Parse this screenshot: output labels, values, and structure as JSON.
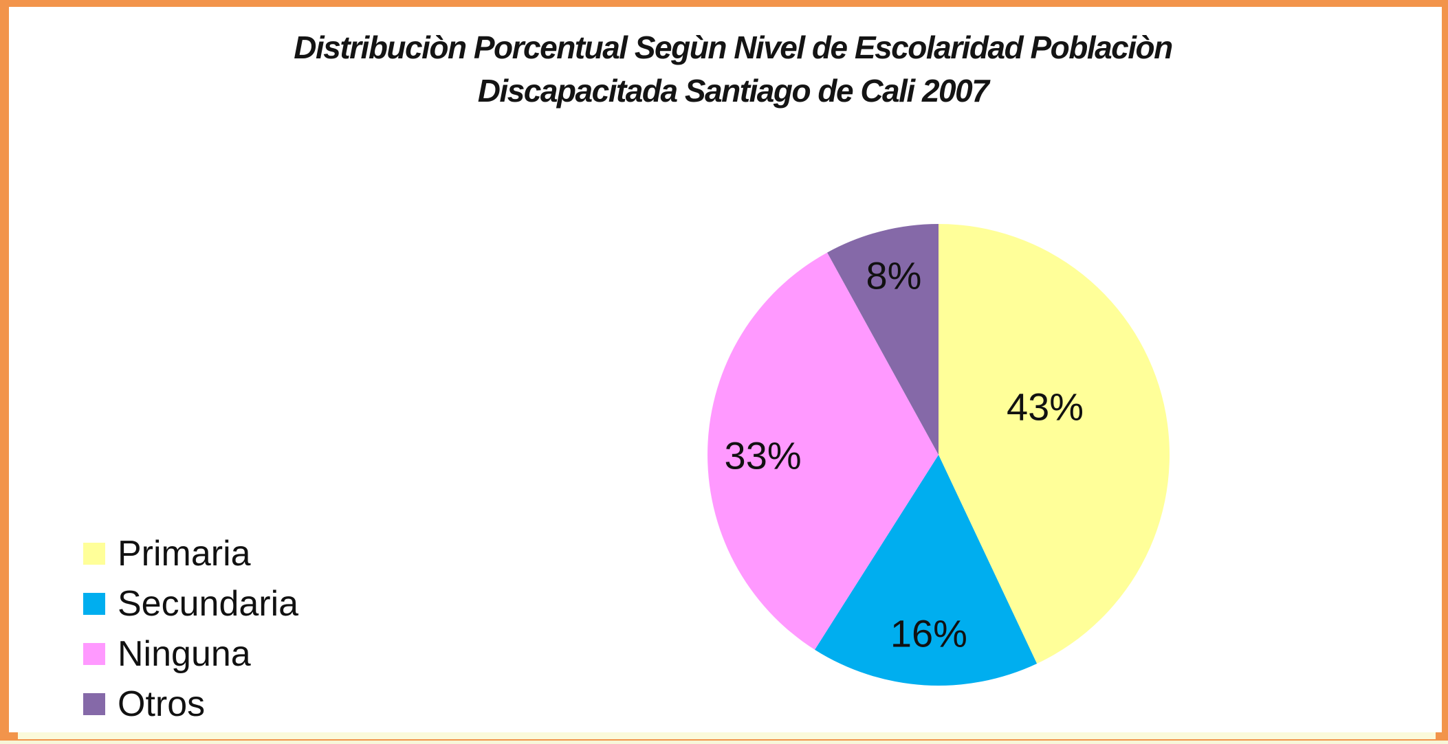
{
  "frame": {
    "border_color": "#F2944B",
    "background_color": "#FFFFFF"
  },
  "title": {
    "line1": "Distribuciòn Porcentual Segùn Nivel de Escolaridad Poblaciòn",
    "line2": "Discapacitada Santiago de Cali 2007",
    "color": "#141414"
  },
  "chart_data": {
    "type": "pie",
    "title": "Distribuciòn Porcentual Segùn Nivel de Escolaridad Poblaciòn Discapacitada Santiago de Cali 2007",
    "slices": [
      {
        "label": "Primaria",
        "value": 43,
        "display": "43%",
        "color": "#FFFF99"
      },
      {
        "label": "Secundaria",
        "value": 16,
        "display": "16%",
        "color": "#00AEEF"
      },
      {
        "label": "Ninguna",
        "value": 33,
        "display": "33%",
        "color": "#FF99FF"
      },
      {
        "label": "Otros",
        "value": 8,
        "display": "8%",
        "color": "#8569A8"
      }
    ],
    "start_angle_deg": 0,
    "direction": "clockwise",
    "data_label_color": "#111111",
    "legend_position": "bottom-left",
    "grid": false
  },
  "legend": {
    "items": [
      {
        "label": "Primaria",
        "color": "#FFFF99"
      },
      {
        "label": "Secundaria",
        "color": "#00AEEF"
      },
      {
        "label": "Ninguna",
        "color": "#FF99FF"
      },
      {
        "label": "Otros",
        "color": "#8569A8"
      }
    ]
  }
}
